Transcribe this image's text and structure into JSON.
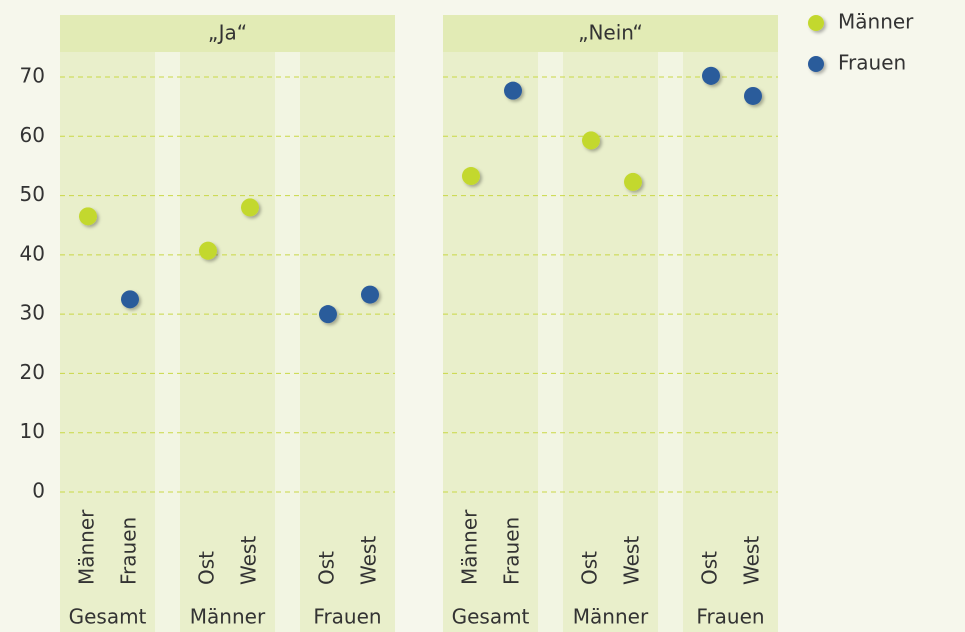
{
  "chart_data": {
    "type": "dot",
    "series": [
      {
        "name": "Männer",
        "color": "#c3d82e"
      },
      {
        "name": "Frauen",
        "color": "#2b5b9b"
      }
    ],
    "ylim": [
      0,
      70
    ],
    "yticks": [
      0,
      10,
      20,
      30,
      40,
      50,
      60,
      70
    ],
    "grid": true,
    "legend": "top-right",
    "panels": [
      {
        "title": "„Ja“",
        "groups": [
          {
            "name": "Gesamt",
            "categories": [
              "Männer",
              "Frauen"
            ]
          },
          {
            "name": "Männer",
            "categories": [
              "Ost",
              "West"
            ]
          },
          {
            "name": "Frauen",
            "categories": [
              "Ost",
              "West"
            ]
          }
        ],
        "series": [
          {
            "values": [
              46.5,
              null,
              40.7,
              48,
              null,
              null
            ],
            "errors": [
              null,
              null,
              1.5,
              null,
              null,
              null
            ]
          },
          {
            "values": [
              null,
              32.5,
              null,
              null,
              30,
              33.3
            ],
            "errors": [
              null,
              null,
              null,
              null,
              1.5,
              null
            ]
          }
        ]
      },
      {
        "title": "„Nein“",
        "groups": [
          {
            "name": "Gesamt",
            "categories": [
              "Männer",
              "Frauen"
            ]
          },
          {
            "name": "Männer",
            "categories": [
              "Ost",
              "West"
            ]
          },
          {
            "name": "Frauen",
            "categories": [
              "Ost",
              "West"
            ]
          }
        ],
        "series": [
          {
            "values": [
              53.3,
              null,
              59.3,
              52.3,
              null,
              null
            ],
            "errors": [
              null,
              null,
              1.5,
              null,
              null,
              null
            ]
          },
          {
            "values": [
              null,
              67.7,
              null,
              null,
              70.2,
              66.8
            ],
            "errors": [
              null,
              null,
              null,
              null,
              1.5,
              null
            ]
          }
        ]
      }
    ]
  }
}
